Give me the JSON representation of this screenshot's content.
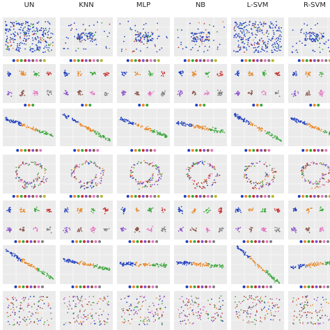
{
  "columns": [
    "UN",
    "KNN",
    "MLP",
    "NB",
    "L-SVM",
    "R-SVM"
  ]
}
